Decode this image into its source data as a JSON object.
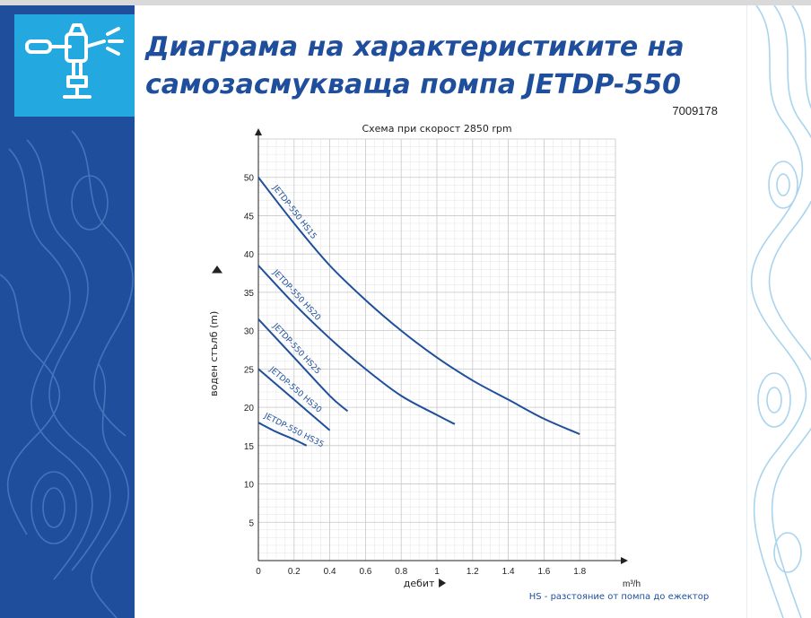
{
  "page": {
    "title_line1": "Диаграма на характеристиките на",
    "title_line2": "самозасмукваща помпа JETDP-550",
    "product_code": "7009178",
    "footnote": "HS - разстояние от помпа до ежектор"
  },
  "colors": {
    "accent": "#1f4f9c",
    "logo_bg": "#23a8df",
    "curve": "#1f4f9c",
    "grid": "#c8c8c8"
  },
  "icons": {
    "logo": "sprinkler-icon",
    "axis_arrow": "arrow-icon"
  },
  "chart_data": {
    "type": "line",
    "title": "Схема при скорост 2850 rpm",
    "xlabel": "дебит",
    "xunit": "m³/h",
    "ylabel": "воден стълб (m)",
    "xlim": [
      0,
      2.0
    ],
    "ylim": [
      0,
      55
    ],
    "xticks": [
      "0",
      "0.2",
      "0.4",
      "0.6",
      "0.8",
      "1",
      "1.2",
      "1.4",
      "1.6",
      "1.8"
    ],
    "xtick_values": [
      0,
      0.2,
      0.4,
      0.6,
      0.8,
      1.0,
      1.2,
      1.4,
      1.6,
      1.8
    ],
    "yticks": [
      "5",
      "10",
      "15",
      "20",
      "25",
      "30",
      "35",
      "40",
      "45",
      "50"
    ],
    "ytick_values": [
      5,
      10,
      15,
      20,
      25,
      30,
      35,
      40,
      45,
      50
    ],
    "grid": true,
    "series": [
      {
        "name": "JETDP-550 HS15",
        "x": [
          0,
          0.2,
          0.4,
          0.6,
          0.8,
          1.0,
          1.2,
          1.4,
          1.6,
          1.8
        ],
        "y": [
          50,
          44,
          38.5,
          34,
          30,
          26.5,
          23.5,
          21,
          18.5,
          16.5
        ]
      },
      {
        "name": "JETDP-550 HS20",
        "x": [
          0,
          0.2,
          0.4,
          0.6,
          0.8,
          1.0,
          1.1
        ],
        "y": [
          38.5,
          33.5,
          29,
          25,
          21.5,
          19,
          17.8
        ]
      },
      {
        "name": "JETDP-550 HS25",
        "x": [
          0,
          0.2,
          0.4,
          0.5
        ],
        "y": [
          31.5,
          26.5,
          21.5,
          19.5
        ]
      },
      {
        "name": "JETDP-550 HS30",
        "x": [
          0,
          0.2,
          0.4
        ],
        "y": [
          25,
          21,
          17
        ]
      },
      {
        "name": "JETDP-550 HS35",
        "x": [
          0,
          0.1,
          0.2,
          0.27
        ],
        "y": [
          18,
          16.8,
          15.8,
          15
        ]
      }
    ]
  }
}
